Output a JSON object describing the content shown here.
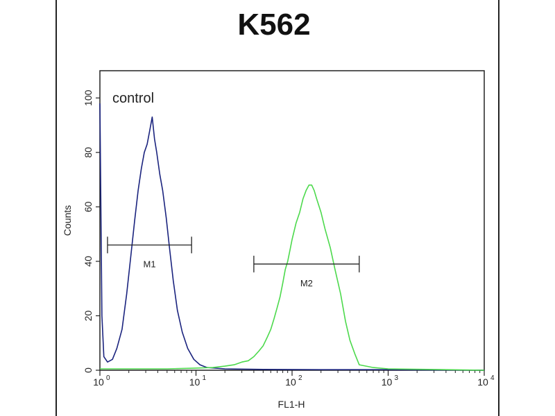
{
  "chart_data": {
    "type": "histogram",
    "title": "K562",
    "xlabel": "FL1-H",
    "ylabel": "Counts",
    "x_scale": "log",
    "xlim": [
      1,
      10000
    ],
    "ylim": [
      0,
      110
    ],
    "x_ticks": [
      {
        "value": 1,
        "base": "10",
        "exp": "0"
      },
      {
        "value": 10,
        "base": "10",
        "exp": "1"
      },
      {
        "value": 100,
        "base": "10",
        "exp": "2"
      },
      {
        "value": 1000,
        "base": "10",
        "exp": "3"
      },
      {
        "value": 10000,
        "base": "10",
        "exp": "4"
      }
    ],
    "y_ticks": [
      0,
      20,
      40,
      60,
      80,
      100
    ],
    "annotation": "control",
    "series": [
      {
        "color": "#1a237e",
        "x": [
          1,
          1.05,
          1.1,
          1.2,
          1.35,
          1.5,
          1.7,
          1.9,
          2.1,
          2.3,
          2.5,
          2.7,
          2.9,
          3.1,
          3.3,
          3.5,
          3.7,
          3.9,
          4.2,
          4.5,
          4.9,
          5.3,
          5.8,
          6.4,
          7.2,
          8.2,
          9.5,
          11,
          13,
          20,
          50,
          200,
          1000,
          10000
        ],
        "y": [
          98,
          20,
          5,
          3,
          4,
          8,
          15,
          28,
          42,
          55,
          66,
          74,
          80,
          83,
          88,
          93,
          85,
          80,
          72,
          66,
          56,
          45,
          33,
          22,
          14,
          8,
          4,
          2,
          1,
          0.5,
          0.3,
          0.2,
          0.2,
          0
        ]
      },
      {
        "color": "#4cd94c",
        "x": [
          1,
          5,
          10,
          15,
          20,
          25,
          30,
          35,
          40,
          45,
          50,
          55,
          60,
          65,
          70,
          75,
          80,
          85,
          90,
          95,
          100,
          110,
          120,
          130,
          140,
          150,
          160,
          170,
          180,
          200,
          220,
          250,
          280,
          320,
          360,
          400,
          450,
          500,
          700,
          1000,
          10000
        ],
        "y": [
          0.5,
          0.5,
          0.8,
          1,
          1.5,
          2,
          3,
          3.5,
          5,
          7,
          9,
          12,
          15,
          19,
          23,
          27,
          32,
          37,
          40,
          44,
          48,
          54,
          58,
          63,
          66,
          68,
          68,
          66,
          63,
          58,
          52,
          45,
          37,
          28,
          18,
          11,
          6,
          2,
          1,
          0.5,
          0
        ]
      }
    ],
    "markers": [
      {
        "label": "M1",
        "x_start": 1.2,
        "x_end": 9,
        "y": 46
      },
      {
        "label": "M2",
        "x_start": 40,
        "x_end": 500,
        "y": 39
      }
    ]
  }
}
